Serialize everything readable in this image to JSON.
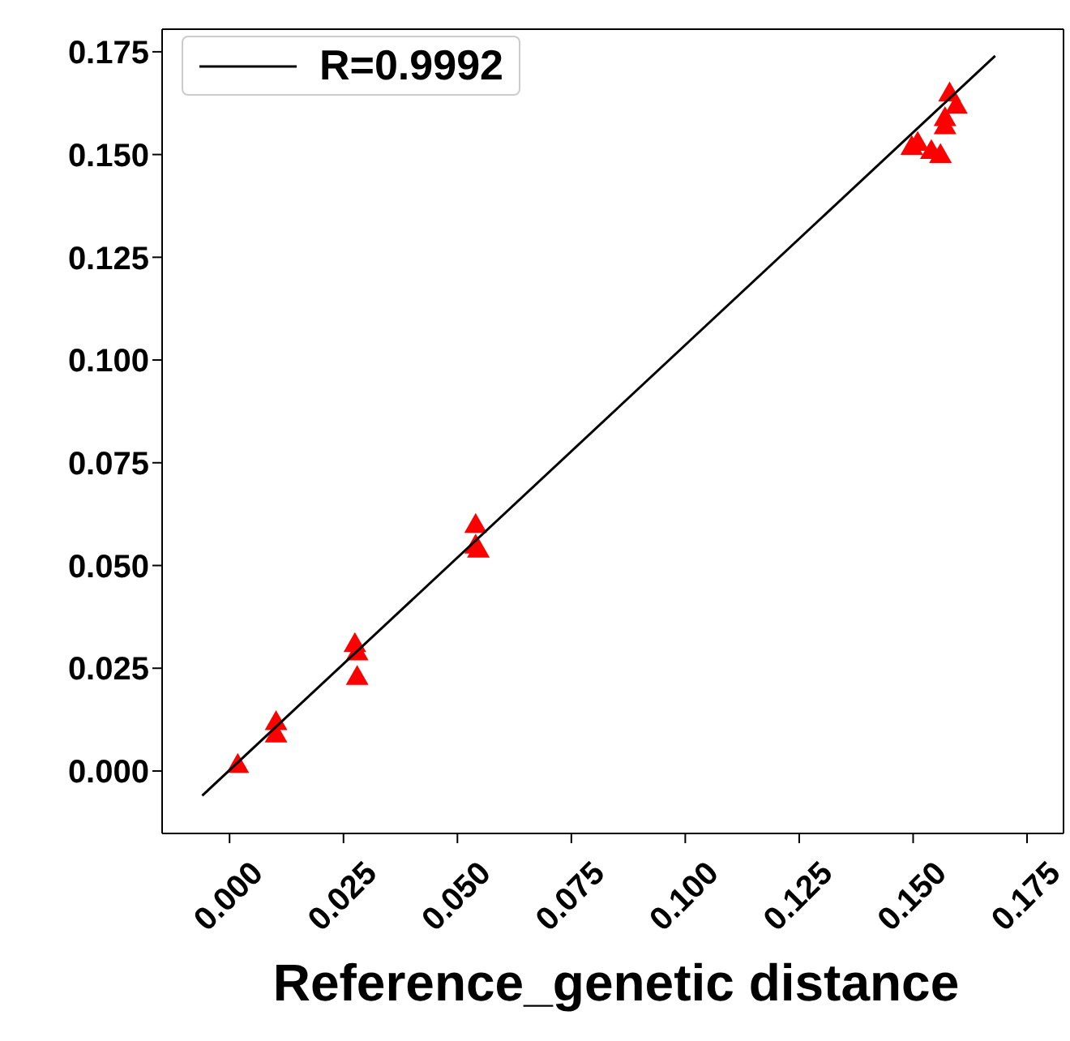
{
  "chart_data": {
    "type": "scatter",
    "xlabel": "Reference_genetic distance",
    "marker": "triangle",
    "legend": "top left",
    "xlim": [
      -0.0148,
      0.183
    ],
    "ylim": [
      -0.0152,
      0.1805
    ],
    "xticks": [
      {
        "value": 0,
        "label": "0.000"
      },
      {
        "value": 0.025,
        "label": "0.025"
      },
      {
        "value": 0.05,
        "label": "0.050"
      },
      {
        "value": 0.075,
        "label": "0.075"
      },
      {
        "value": 0.1,
        "label": "0.100"
      },
      {
        "value": 0.125,
        "label": "0.125"
      },
      {
        "value": 0.15,
        "label": "0.150"
      },
      {
        "value": 0.175,
        "label": "0.175"
      }
    ],
    "yticks": [
      {
        "value": 0,
        "label": "0.000"
      },
      {
        "value": 0.025,
        "label": "0.025"
      },
      {
        "value": 0.05,
        "label": "0.050"
      },
      {
        "value": 0.075,
        "label": "0.075"
      },
      {
        "value": 0.1,
        "label": "0.100"
      },
      {
        "value": 0.125,
        "label": "0.125"
      },
      {
        "value": 0.15,
        "label": "0.150"
      },
      {
        "value": 0.175,
        "label": "0.175"
      }
    ],
    "series": [
      {
        "color": "#ff0000",
        "x": [
          0.0018,
          0.0102,
          0.0102,
          0.0275,
          0.028,
          0.028,
          0.054,
          0.054,
          0.0546,
          0.158,
          0.1595,
          0.157,
          0.157,
          0.1497,
          0.151,
          0.154,
          0.156
        ],
        "values": [
          0.0016,
          0.012,
          0.009,
          0.031,
          0.029,
          0.023,
          0.06,
          0.055,
          0.054,
          0.165,
          0.162,
          0.157,
          0.159,
          0.152,
          0.153,
          0.151,
          0.15
        ]
      },
      {
        "type": "line",
        "name": "R=0.9992",
        "color": "#000000",
        "marker": "none",
        "x": [
          -0.006,
          0.168
        ],
        "values": [
          -0.006,
          0.174
        ]
      }
    ]
  }
}
